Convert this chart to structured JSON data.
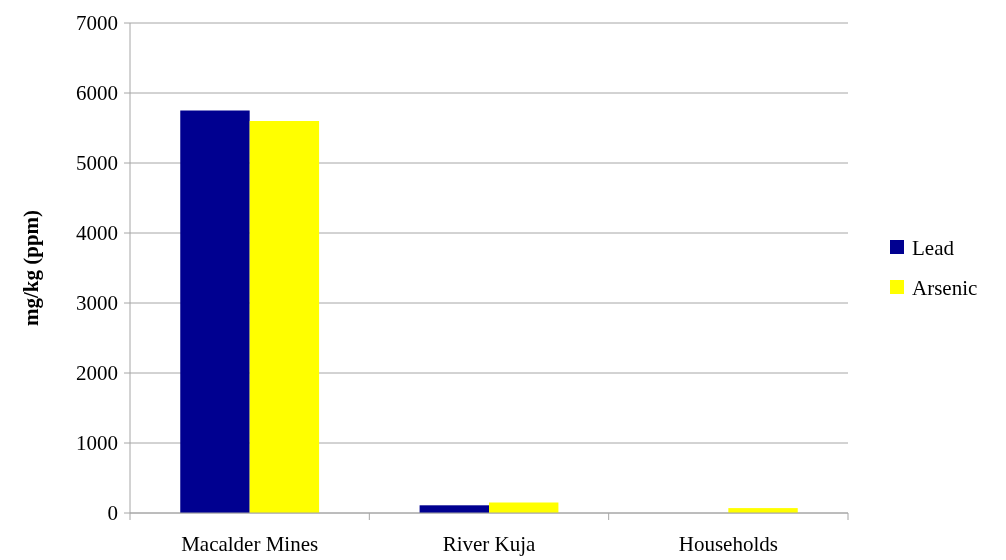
{
  "chart_data": {
    "type": "bar",
    "ylabel": "mg/kg (ppm)",
    "categories": [
      "Macalder Mines",
      "River Kuja",
      "Households"
    ],
    "series": [
      {
        "name": "Lead",
        "color": "#000090",
        "values": [
          5750,
          110,
          null
        ]
      },
      {
        "name": "Arsenic",
        "color": "#ffff00",
        "values": [
          5600,
          150,
          70
        ]
      }
    ],
    "ylim": [
      0,
      7000
    ],
    "yticks": [
      0,
      1000,
      2000,
      3000,
      4000,
      5000,
      6000,
      7000
    ],
    "grid": "y",
    "legend": "right"
  }
}
